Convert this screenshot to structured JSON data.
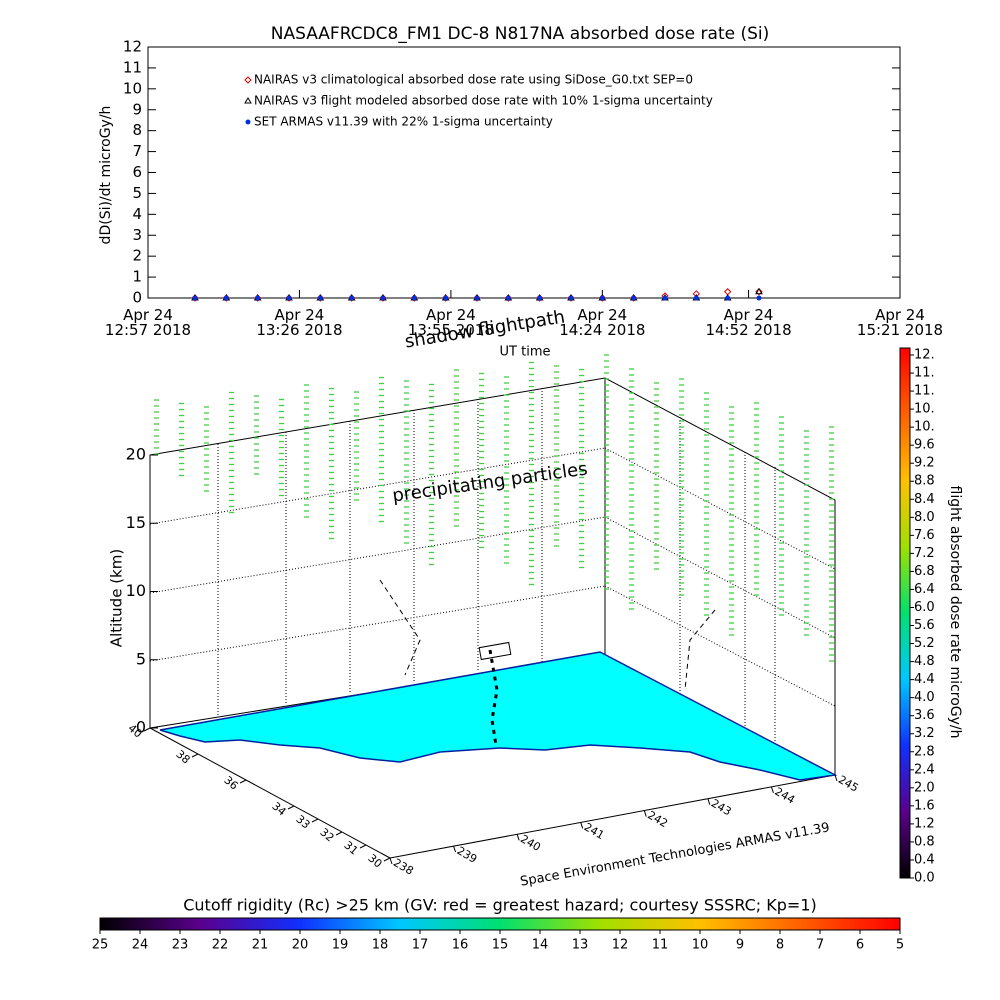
{
  "chart_data": [
    {
      "type": "scatter",
      "title": "NASAAFRCDC8_FM1 DC-8   N817NA absorbed dose rate (Si)",
      "ylabel": "dD(Si)/dt microGy/h",
      "xlabel": "UT time",
      "ylim": [
        0,
        12
      ],
      "yticks": [
        0,
        1,
        2,
        3,
        4,
        5,
        6,
        7,
        8,
        9,
        10,
        11,
        12
      ],
      "xlim": [
        12.95,
        15.35
      ],
      "xticks": [
        {
          "value": 12.95,
          "label": "Apr 24\n12:57 2018"
        },
        {
          "value": 13.4333,
          "label": "Apr 24\n13:26 2018"
        },
        {
          "value": 13.9167,
          "label": "Apr 24\n13:55 2018"
        },
        {
          "value": 14.4,
          "label": "Apr 24\n14:24 2018"
        },
        {
          "value": 14.8667,
          "label": "Apr 24\n14:52 2018"
        },
        {
          "value": 15.35,
          "label": "Apr 24\n15:21 2018"
        }
      ],
      "x": [
        13.1,
        13.2,
        13.3,
        13.4,
        13.5,
        13.6,
        13.7,
        13.8,
        13.9,
        14.0,
        14.1,
        14.2,
        14.3,
        14.4,
        14.5,
        14.6,
        14.7,
        14.8,
        14.9
      ],
      "series": [
        {
          "name": "NAIRAS v3 climatological absorbed dose rate using SiDose_G0.txt SEP=0",
          "color": "#e00000",
          "marker": "diamond",
          "values": [
            0,
            0,
            0,
            0,
            0,
            0,
            0,
            0,
            0,
            0,
            0,
            0,
            0,
            0,
            0,
            0.1,
            0.2,
            0.3,
            0.3
          ]
        },
        {
          "name": "NAIRAS v3 flight modeled absorbed dose rate with 10% 1-sigma uncertainty",
          "color": "#000000",
          "marker": "triangle",
          "values": [
            0,
            0,
            0,
            0,
            0,
            0,
            0,
            0,
            0,
            0,
            0,
            0,
            0,
            0,
            0,
            0,
            0,
            0,
            0.3
          ]
        },
        {
          "name": "SET ARMAS v11.39 with 22% 1-sigma uncertainty",
          "color": "#0030e0",
          "marker": "dot",
          "values": [
            0,
            0,
            0,
            0,
            0,
            0,
            0,
            0,
            0,
            0,
            0,
            0,
            0,
            0,
            0,
            0,
            0,
            0,
            0
          ]
        }
      ]
    },
    {
      "type": "colorbar",
      "orientation": "vertical",
      "label": "flight absorbed dose rate microGy/h",
      "colors": [
        "#000000",
        "#5a008c",
        "#1030ff",
        "#00c8ff",
        "#00e070",
        "#a0e000",
        "#ffc000",
        "#ff6000",
        "#ff0000"
      ],
      "ylim": [
        0,
        11.6
      ],
      "yticks": [
        {
          "value": 0,
          "label": "0.0"
        },
        0.4,
        0.8,
        1.2,
        1.6,
        {
          "value": 2,
          "label": "2.0"
        },
        2.4,
        2.8,
        3.2,
        3.6,
        {
          "value": 4,
          "label": "4.0"
        },
        4.4,
        4.8,
        5.2,
        5.6,
        {
          "value": 6,
          "label": "6.0"
        },
        6.4,
        6.8,
        7.2,
        7.6,
        {
          "value": 8,
          "label": "8.0"
        },
        8.4,
        8.8,
        9.2,
        9.6,
        {
          "value": 10,
          "label": "10."
        },
        {
          "value": 10.4,
          "label": "10."
        },
        {
          "value": 10.8,
          "label": "11."
        },
        {
          "value": 11.2,
          "label": "11."
        },
        {
          "value": 11.6,
          "label": "12."
        }
      ]
    },
    {
      "type": "colorbar",
      "orientation": "horizontal",
      "label": "Cutoff rigidity (Rc) >25 km (GV: red = greatest hazard; courtesy SSSRC; Kp=1)",
      "colors": [
        "#000000",
        "#5a008c",
        "#1030ff",
        "#00c8ff",
        "#00e070",
        "#a0e000",
        "#ffc000",
        "#ff6000",
        "#ff0000"
      ],
      "xlim": [
        25,
        5
      ],
      "xticks": [
        25,
        24,
        23,
        22,
        21,
        20,
        19,
        18,
        17,
        16,
        15,
        14,
        13,
        12,
        11,
        10,
        9,
        8,
        7,
        6,
        5
      ]
    }
  ],
  "scene": {
    "annotations": [
      "shadow flightpath",
      "precipitating particles"
    ],
    "altitude_label": "Altitude (km)",
    "altitude_ticks": [
      0,
      5,
      10,
      15,
      20
    ],
    "latitude_ticks": [
      30,
      31,
      32,
      33,
      34,
      36,
      38,
      40
    ],
    "longitude_ticks": [
      238,
      239,
      240,
      241,
      242,
      243,
      244,
      245
    ],
    "credit": "Space Environment Technologies ARMAS v11.39"
  }
}
